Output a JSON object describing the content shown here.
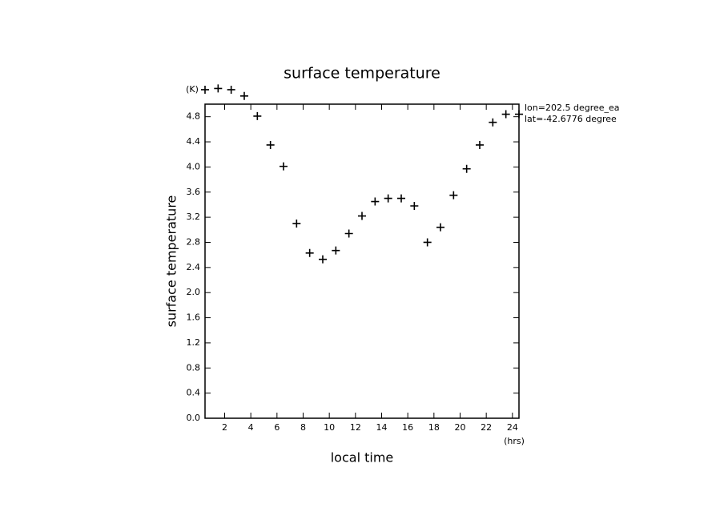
{
  "chart_data": {
    "type": "scatter",
    "title": "surface temperature",
    "x_label": "local time",
    "y_label": "surface temperature",
    "x_unit": "(hrs)",
    "y_unit": "(K)",
    "annotations": [
      "lon=202.5 degree_ea",
      "lat=-42.6776 degree"
    ],
    "x": [
      0.5,
      1.5,
      2.5,
      3.5,
      4.5,
      5.5,
      6.5,
      7.5,
      8.5,
      9.5,
      10.5,
      11.5,
      12.5,
      13.5,
      14.5,
      15.5,
      16.5,
      17.5,
      18.5,
      19.5,
      20.5,
      21.5,
      22.5,
      23.5,
      24.5
    ],
    "values": [
      5.23,
      5.25,
      5.23,
      5.13,
      4.81,
      4.35,
      4.01,
      3.1,
      2.63,
      2.53,
      2.67,
      2.94,
      3.22,
      3.45,
      3.5,
      3.5,
      3.38,
      2.8,
      3.04,
      3.55,
      3.97,
      4.35,
      4.71,
      4.84,
      4.84
    ],
    "color": "#000000",
    "xlim": [
      0.5,
      24.5
    ],
    "ylim": [
      0,
      5
    ],
    "xticks": [
      2,
      4,
      6,
      8,
      10,
      12,
      14,
      16,
      18,
      20,
      22,
      24
    ],
    "yticks": [
      {
        "value": 0,
        "label": "0.0"
      },
      0.4,
      0.8,
      1.2,
      1.6,
      {
        "value": 2,
        "label": "2.0"
      },
      2.4,
      2.8,
      3.2,
      3.6,
      {
        "value": 4,
        "label": "4.0"
      },
      4.4,
      4.8
    ]
  }
}
